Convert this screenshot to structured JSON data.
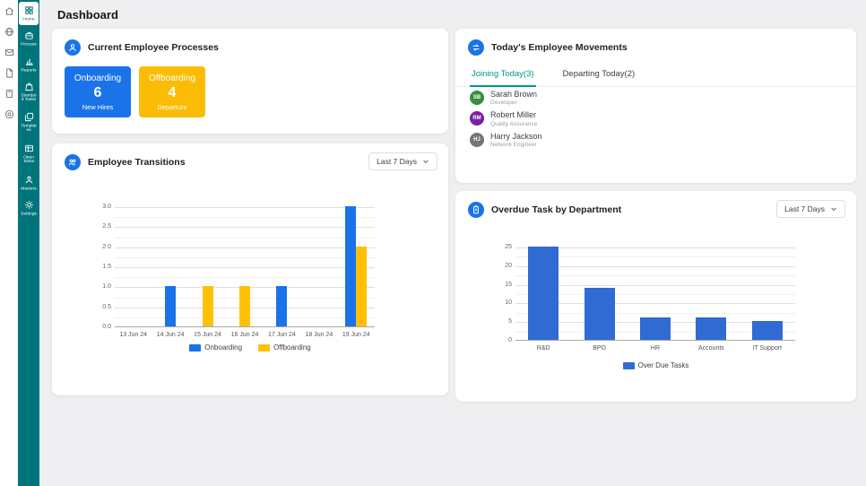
{
  "page": {
    "title": "Dashboard"
  },
  "rail": {
    "icons": [
      "home-icon",
      "globe-icon",
      "mail-icon",
      "document-icon",
      "calculator-icon",
      "target-icon"
    ]
  },
  "sidebar": {
    "items": [
      {
        "label": "Home",
        "icon": "grid",
        "active": true
      },
      {
        "label": "Process",
        "icon": "briefcase",
        "active": false
      },
      {
        "label": "Reports",
        "icon": "chart",
        "active": false
      },
      {
        "label": "Standard Tasks",
        "icon": "bag",
        "active": false
      },
      {
        "label": "Templates",
        "icon": "copy",
        "active": false
      },
      {
        "label": "Open Tasks",
        "icon": "table",
        "active": false
      },
      {
        "label": "Masters",
        "icon": "person",
        "active": false
      },
      {
        "label": "Settings",
        "icon": "gear",
        "active": false
      }
    ]
  },
  "cards": {
    "processes": {
      "title": "Current Employee Processes",
      "tiles": [
        {
          "label": "Onboarding",
          "value": "6",
          "caption": "New Hires",
          "color": "#1a73e8"
        },
        {
          "label": "Offboarding",
          "value": "4",
          "caption": "Departure",
          "color": "#fbbc05"
        }
      ]
    },
    "movements": {
      "title": "Today's Employee Movements",
      "tabs": [
        {
          "label": "Joining Today(3)",
          "active": true
        },
        {
          "label": "Departing Today(2)",
          "active": false
        }
      ],
      "people": [
        {
          "initials": "SB",
          "name": "Sarah Brown",
          "role": "Developer",
          "color": "#388e3c"
        },
        {
          "initials": "RM",
          "name": "Robert Miller",
          "role": "Quality Assurance",
          "color": "#7b1fa2"
        },
        {
          "initials": "HJ",
          "name": "Harry Jackson",
          "role": "Network Engineer",
          "color": "#757575"
        }
      ]
    },
    "transitions": {
      "title": "Employee Transitions",
      "filter": "Last 7 Days"
    },
    "overdue": {
      "title": "Overdue Task by Department",
      "filter": "Last 7 Days"
    }
  },
  "chart_data": [
    {
      "type": "bar",
      "title": "Employee Transitions",
      "categories": [
        "13 Jun 24",
        "14 Jun 24",
        "15 Jun 24",
        "16 Jun 24",
        "17 Jun 24",
        "18 Jun 24",
        "19 Jun 24"
      ],
      "series": [
        {
          "name": "Onboarding",
          "color": "#1a73e8",
          "values": [
            0,
            1,
            0,
            0,
            1,
            0,
            3
          ]
        },
        {
          "name": "Offboarding",
          "color": "#ffc107",
          "values": [
            0,
            0,
            1,
            1,
            0,
            0,
            2
          ]
        }
      ],
      "ylim": [
        0,
        3
      ],
      "ytick_step": 0.5,
      "ytick_decimals": 1,
      "grid": true,
      "legend_position": "bottom"
    },
    {
      "type": "bar",
      "title": "Overdue Task by Department",
      "categories": [
        "R&D",
        "BPO",
        "HR",
        "Accounts",
        "IT Support"
      ],
      "series": [
        {
          "name": "Over Due Tasks",
          "color": "#2f6bd3",
          "values": [
            25,
            14,
            6,
            6,
            5
          ]
        }
      ],
      "ylim": [
        0,
        25
      ],
      "ytick_step": 5,
      "ytick_decimals": 0,
      "grid": true,
      "legend_position": "bottom"
    }
  ]
}
